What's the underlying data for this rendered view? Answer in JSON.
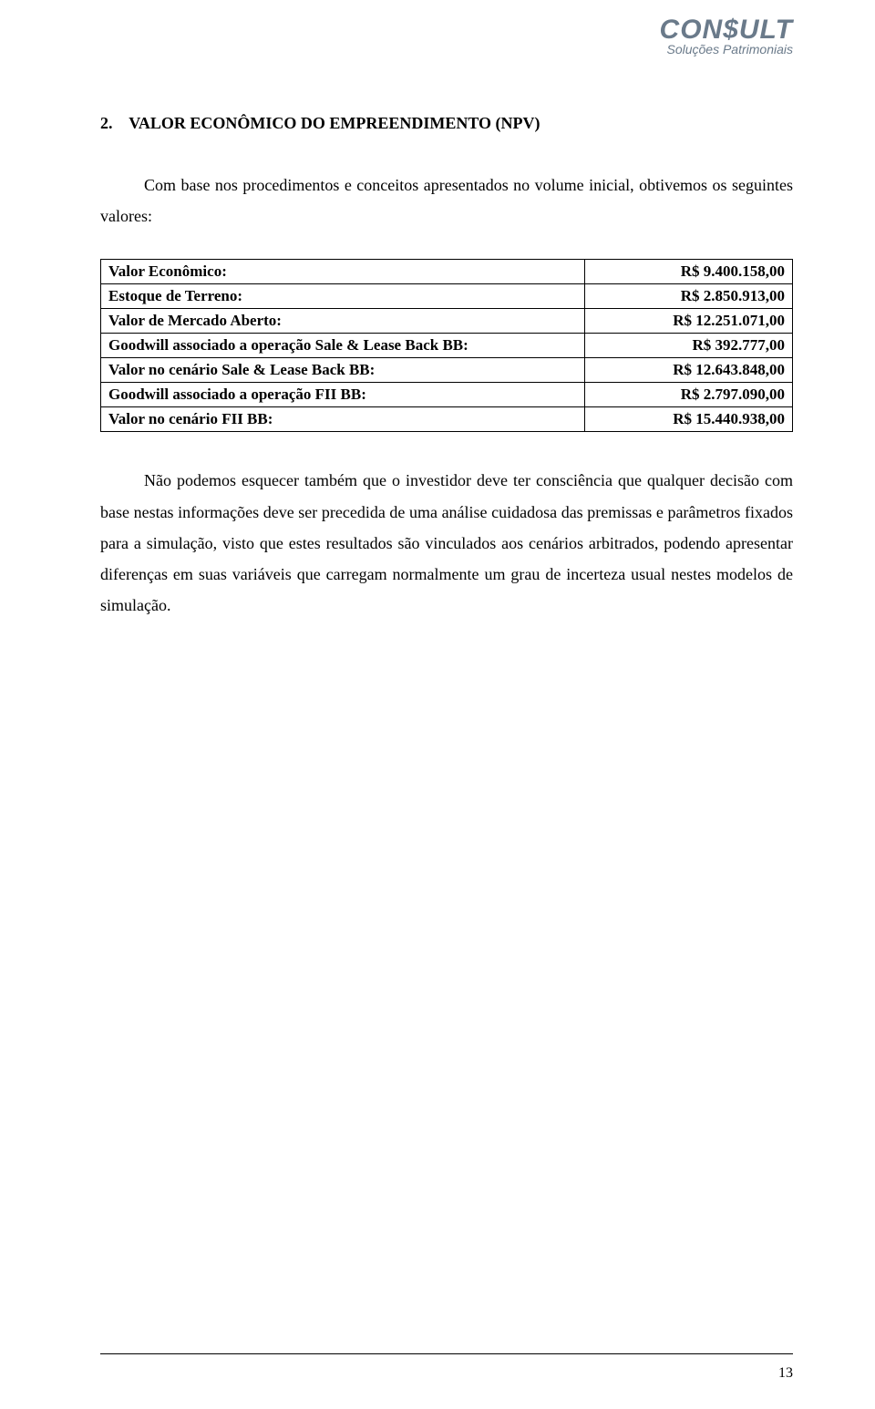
{
  "logo": {
    "main": "CON$ULT",
    "sub": "Soluções Patrimoniais"
  },
  "section": {
    "number": "2.",
    "title": "VALOR ECONÔMICO DO EMPREENDIMENTO (NPV)"
  },
  "intro": "Com base nos procedimentos e conceitos apresentados no volume inicial, obtivemos os seguintes valores:",
  "table": {
    "rows": [
      {
        "label": "Valor Econômico:",
        "value": "R$ 9.400.158,00"
      },
      {
        "label": "Estoque de Terreno:",
        "value": "R$ 2.850.913,00"
      },
      {
        "label": "Valor de Mercado Aberto:",
        "value": "R$ 12.251.071,00"
      },
      {
        "label": "Goodwill associado a operação Sale & Lease Back BB:",
        "value": "R$ 392.777,00"
      },
      {
        "label": "Valor no cenário Sale & Lease Back BB:",
        "value": "R$ 12.643.848,00"
      },
      {
        "label": "Goodwill associado a operação FII BB:",
        "value": "R$ 2.797.090,00"
      },
      {
        "label": "Valor no cenário FII BB:",
        "value": "R$ 15.440.938,00"
      }
    ]
  },
  "closing": "Não podemos esquecer também que o investidor deve ter consciência que qualquer decisão com base nestas informações deve ser precedida de uma análise cuidadosa das premissas e parâmetros fixados para a simulação, visto que estes resultados são vinculados aos cenários arbitrados, podendo apresentar diferenças em suas variáveis que carregam normalmente um grau de incerteza usual nestes modelos de simulação.",
  "page_number": "13"
}
